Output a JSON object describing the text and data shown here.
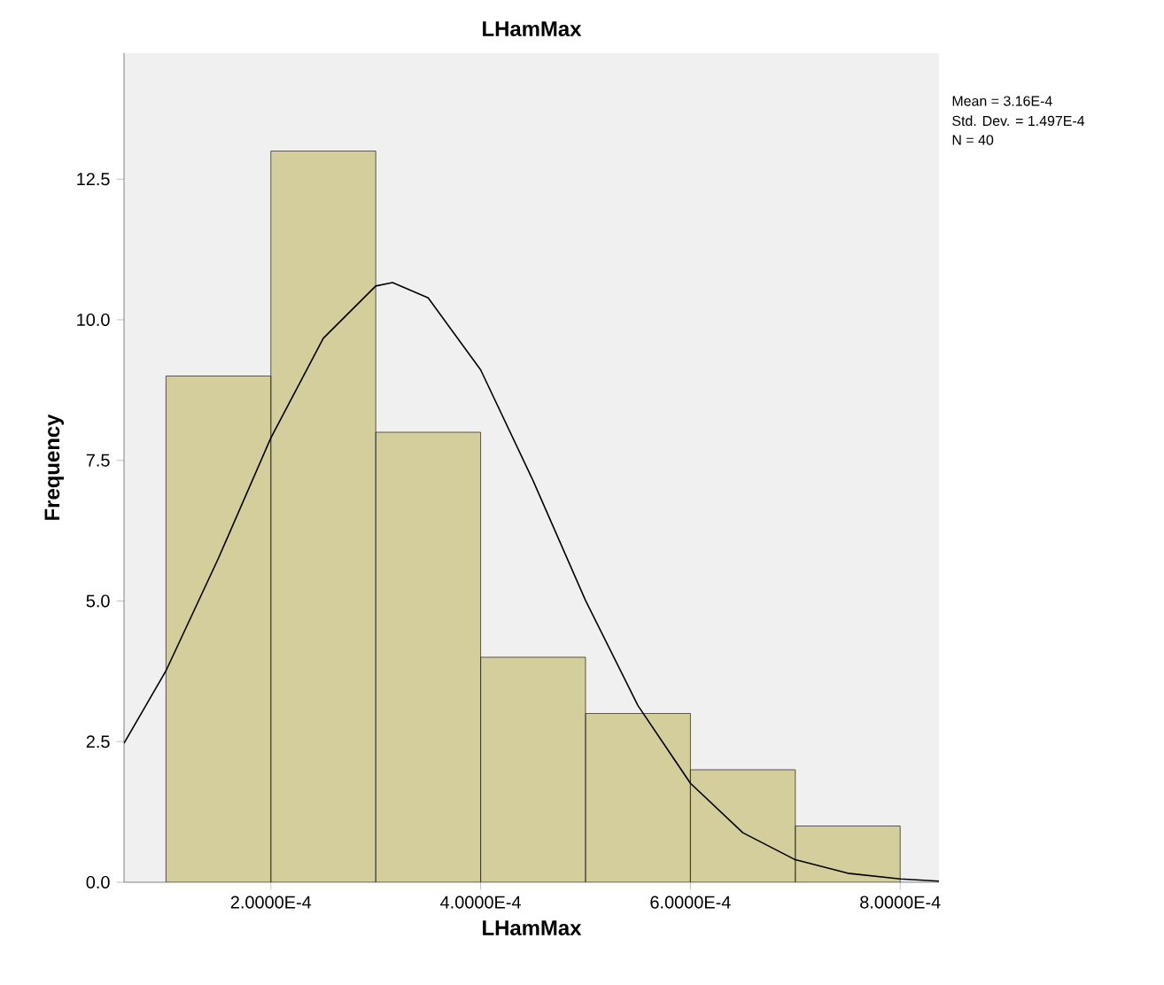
{
  "chart_data": {
    "type": "histogram",
    "title": "LHamMax",
    "xlabel": "LHamMax",
    "ylabel": "Frequency",
    "bins": [
      0.0001,
      0.0002,
      0.0003,
      0.0004,
      0.0005,
      0.0006,
      0.0007,
      0.0008
    ],
    "values": [
      9,
      13,
      8,
      4,
      3,
      2,
      1
    ],
    "color": "#d3ce9b",
    "series": [
      {
        "type": "line",
        "color": "#000000",
        "x": [
          6e-05,
          0.0001,
          0.00015,
          0.0002,
          0.00025,
          0.0003,
          0.000316,
          0.00035,
          0.0004,
          0.00045,
          0.0005,
          0.00055,
          0.0006,
          0.00065,
          0.0007,
          0.00075,
          0.0008,
          0.000837
        ],
        "values": [
          2.47,
          3.76,
          5.76,
          7.9,
          9.67,
          10.6,
          10.66,
          10.39,
          9.11,
          7.14,
          5.01,
          3.14,
          1.76,
          0.88,
          0.4,
          0.16,
          0.06,
          0.02
        ]
      }
    ],
    "xlim": [
      6e-05,
      0.000837
    ],
    "ylim": [
      0,
      14.74
    ],
    "xticks": [
      {
        "value": 0.0002,
        "label": "2.0000E-4"
      },
      {
        "value": 0.0004,
        "label": "4.0000E-4"
      },
      {
        "value": 0.0006,
        "label": "6.0000E-4"
      },
      {
        "value": 0.0008,
        "label": "8.0000E-4"
      }
    ],
    "yticks": [
      {
        "value": 0,
        "label": "0.0"
      },
      {
        "value": 2.5,
        "label": "2.5"
      },
      {
        "value": 5,
        "label": "5.0"
      },
      {
        "value": 7.5,
        "label": "7.5"
      },
      {
        "value": 10,
        "label": "10.0"
      },
      {
        "value": 12.5,
        "label": "12.5"
      }
    ],
    "grid": false,
    "marker": "none",
    "line_style": "solid",
    "annotations": [
      "Mean = 3.16E-4",
      "Std. Dev. = 1.497E-4",
      "N = 40"
    ]
  }
}
